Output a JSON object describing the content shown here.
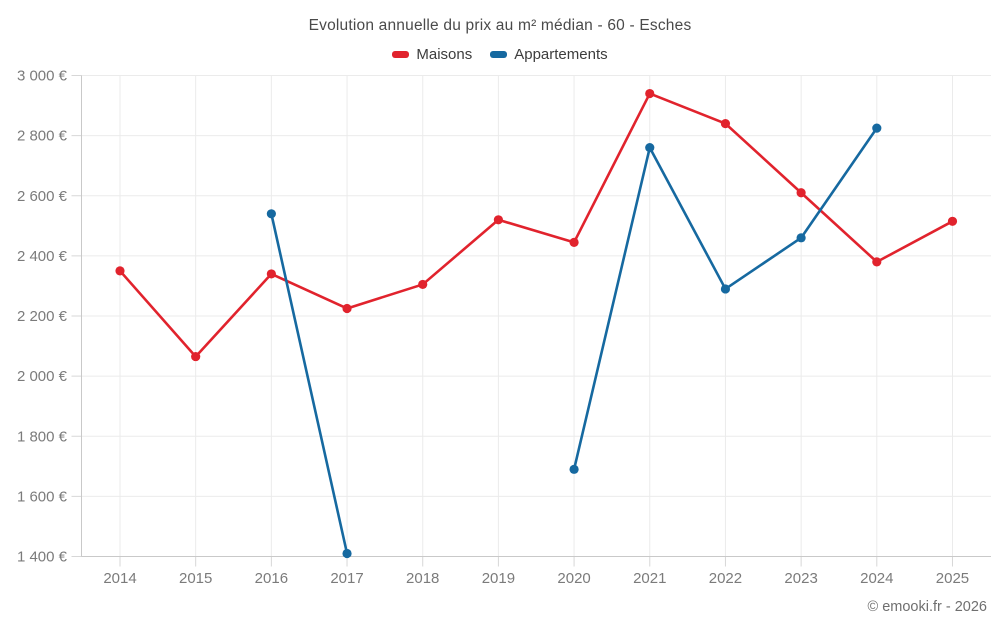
{
  "chart_data": {
    "type": "line",
    "title": "Evolution annuelle du prix au m² médian - 60 - Esches",
    "categories": [
      "2014",
      "2015",
      "2016",
      "2017",
      "2018",
      "2019",
      "2020",
      "2021",
      "2022",
      "2023",
      "2024",
      "2025"
    ],
    "series": [
      {
        "name": "Maisons",
        "color": "#e1232d",
        "values": [
          2350,
          2065,
          2340,
          2225,
          2305,
          2520,
          2445,
          2940,
          2840,
          2610,
          2380,
          2515
        ]
      },
      {
        "name": "Appartements",
        "color": "#1669a0",
        "values": [
          null,
          null,
          2540,
          1410,
          null,
          null,
          1690,
          2760,
          2290,
          2460,
          2825,
          null
        ]
      }
    ],
    "y_axis": {
      "min": 1400,
      "max": 3000,
      "step": 200,
      "tick_labels": [
        "1 400 €",
        "1 600 €",
        "1 800 €",
        "2 000 €",
        "2 200 €",
        "2 400 €",
        "2 600 €",
        "2 800 €",
        "3 000 €"
      ]
    },
    "x_axis": {
      "tick_labels": [
        "2014",
        "2015",
        "2016",
        "2017",
        "2018",
        "2019",
        "2020",
        "2021",
        "2022",
        "2023",
        "2024",
        "2025"
      ]
    },
    "grid": true,
    "legend_position": "top",
    "colors": {
      "background": "#ffffff",
      "grid": "#ebebeb",
      "axis": "#c9c9c9",
      "tick": "#d7d7d7",
      "tick_label": "#7b7b7b",
      "title": "#4a4a4a",
      "legend_text": "#3d3d3d",
      "attribution": "#6f6f6f"
    }
  },
  "footer": {
    "attribution": "© emooki.fr - 2026"
  }
}
